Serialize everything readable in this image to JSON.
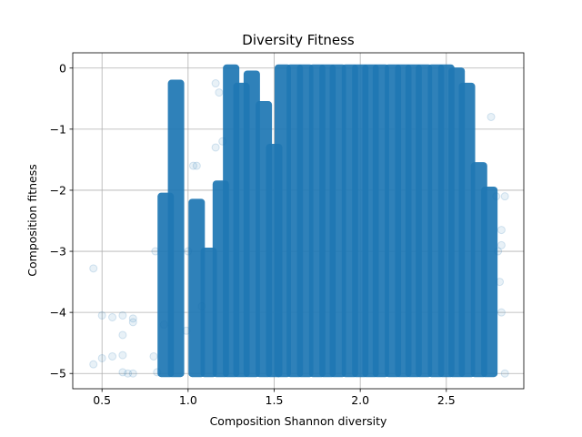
{
  "chart_data": {
    "type": "scatter",
    "title": "Diversity Fitness",
    "xlabel": "Composition Shannon diversity",
    "ylabel": "Composition fitness",
    "xlim": [
      0.33,
      2.95
    ],
    "ylim": [
      -5.25,
      0.25
    ],
    "xticks": [
      0.5,
      1.0,
      1.5,
      2.0,
      2.5
    ],
    "xtick_labels": [
      "0.5",
      "1.0",
      "1.5",
      "2.0",
      "2.5"
    ],
    "yticks": [
      0,
      -1,
      -2,
      -3,
      -4,
      -5
    ],
    "ytick_labels": [
      "0",
      "−1",
      "−2",
      "−3",
      "−4",
      "−5"
    ],
    "grid": true,
    "marker_color": "#1f77b4",
    "marker_alpha": 0.1,
    "columns": [
      {
        "x": 0.87,
        "y_min": -5.0,
        "y_max": -2.1
      },
      {
        "x": 0.93,
        "y_min": -5.0,
        "y_max": -0.25
      },
      {
        "x": 1.05,
        "y_min": -5.0,
        "y_max": -2.2
      },
      {
        "x": 1.12,
        "y_min": -5.0,
        "y_max": -3.0
      },
      {
        "x": 1.19,
        "y_min": -5.0,
        "y_max": -1.9
      },
      {
        "x": 1.25,
        "y_min": -5.0,
        "y_max": 0.0
      },
      {
        "x": 1.31,
        "y_min": -5.0,
        "y_max": -0.3
      },
      {
        "x": 1.37,
        "y_min": -5.0,
        "y_max": -0.1
      },
      {
        "x": 1.44,
        "y_min": -5.0,
        "y_max": -0.6
      },
      {
        "x": 1.5,
        "y_min": -5.0,
        "y_max": -1.3
      },
      {
        "x": 1.55,
        "y_min": -5.0,
        "y_max": 0.0
      },
      {
        "x": 1.62,
        "y_min": -5.0,
        "y_max": 0.0
      },
      {
        "x": 1.68,
        "y_min": -5.0,
        "y_max": 0.0
      },
      {
        "x": 1.75,
        "y_min": -5.0,
        "y_max": 0.0
      },
      {
        "x": 1.81,
        "y_min": -5.0,
        "y_max": 0.0
      },
      {
        "x": 1.87,
        "y_min": -5.0,
        "y_max": 0.0
      },
      {
        "x": 1.94,
        "y_min": -5.0,
        "y_max": 0.0
      },
      {
        "x": 2.0,
        "y_min": -5.0,
        "y_max": 0.0
      },
      {
        "x": 2.06,
        "y_min": -5.0,
        "y_max": 0.0
      },
      {
        "x": 2.12,
        "y_min": -5.0,
        "y_max": 0.0
      },
      {
        "x": 2.19,
        "y_min": -5.0,
        "y_max": 0.0
      },
      {
        "x": 2.25,
        "y_min": -5.0,
        "y_max": 0.0
      },
      {
        "x": 2.31,
        "y_min": -5.0,
        "y_max": 0.0
      },
      {
        "x": 2.37,
        "y_min": -5.0,
        "y_max": 0.0
      },
      {
        "x": 2.44,
        "y_min": -5.0,
        "y_max": 0.0
      },
      {
        "x": 2.5,
        "y_min": -5.0,
        "y_max": 0.0
      },
      {
        "x": 2.56,
        "y_min": -5.0,
        "y_max": -0.05
      },
      {
        "x": 2.62,
        "y_min": -5.0,
        "y_max": -0.3
      },
      {
        "x": 2.69,
        "y_min": -5.0,
        "y_max": -1.6
      },
      {
        "x": 2.75,
        "y_min": -5.0,
        "y_max": -2.0
      }
    ],
    "points": [
      {
        "x": 0.45,
        "y": -3.28
      },
      {
        "x": 0.45,
        "y": -4.85
      },
      {
        "x": 0.5,
        "y": -4.75
      },
      {
        "x": 0.5,
        "y": -4.05
      },
      {
        "x": 0.56,
        "y": -4.08
      },
      {
        "x": 0.56,
        "y": -4.72
      },
      {
        "x": 0.62,
        "y": -4.05
      },
      {
        "x": 0.62,
        "y": -4.37
      },
      {
        "x": 0.62,
        "y": -4.7
      },
      {
        "x": 0.62,
        "y": -4.98
      },
      {
        "x": 0.65,
        "y": -5.0
      },
      {
        "x": 0.68,
        "y": -4.1
      },
      {
        "x": 0.68,
        "y": -4.16
      },
      {
        "x": 0.68,
        "y": -5.0
      },
      {
        "x": 0.8,
        "y": -4.72
      },
      {
        "x": 0.81,
        "y": -3.0
      },
      {
        "x": 0.82,
        "y": -4.98
      },
      {
        "x": 0.86,
        "y": -4.2
      },
      {
        "x": 0.99,
        "y": -4.3
      },
      {
        "x": 1.0,
        "y": -3.0
      },
      {
        "x": 1.03,
        "y": -1.6
      },
      {
        "x": 1.05,
        "y": -1.6
      },
      {
        "x": 1.08,
        "y": -3.9
      },
      {
        "x": 1.16,
        "y": -0.25
      },
      {
        "x": 1.16,
        "y": -1.3
      },
      {
        "x": 1.18,
        "y": -0.4
      },
      {
        "x": 1.2,
        "y": -1.2
      },
      {
        "x": 2.76,
        "y": -0.8
      },
      {
        "x": 2.79,
        "y": -2.1
      },
      {
        "x": 2.8,
        "y": -3.0
      },
      {
        "x": 2.81,
        "y": -3.5
      },
      {
        "x": 2.82,
        "y": -2.65
      },
      {
        "x": 2.82,
        "y": -4.0
      },
      {
        "x": 2.82,
        "y": -2.9
      },
      {
        "x": 2.84,
        "y": -2.1
      },
      {
        "x": 2.84,
        "y": -5.0
      }
    ]
  }
}
